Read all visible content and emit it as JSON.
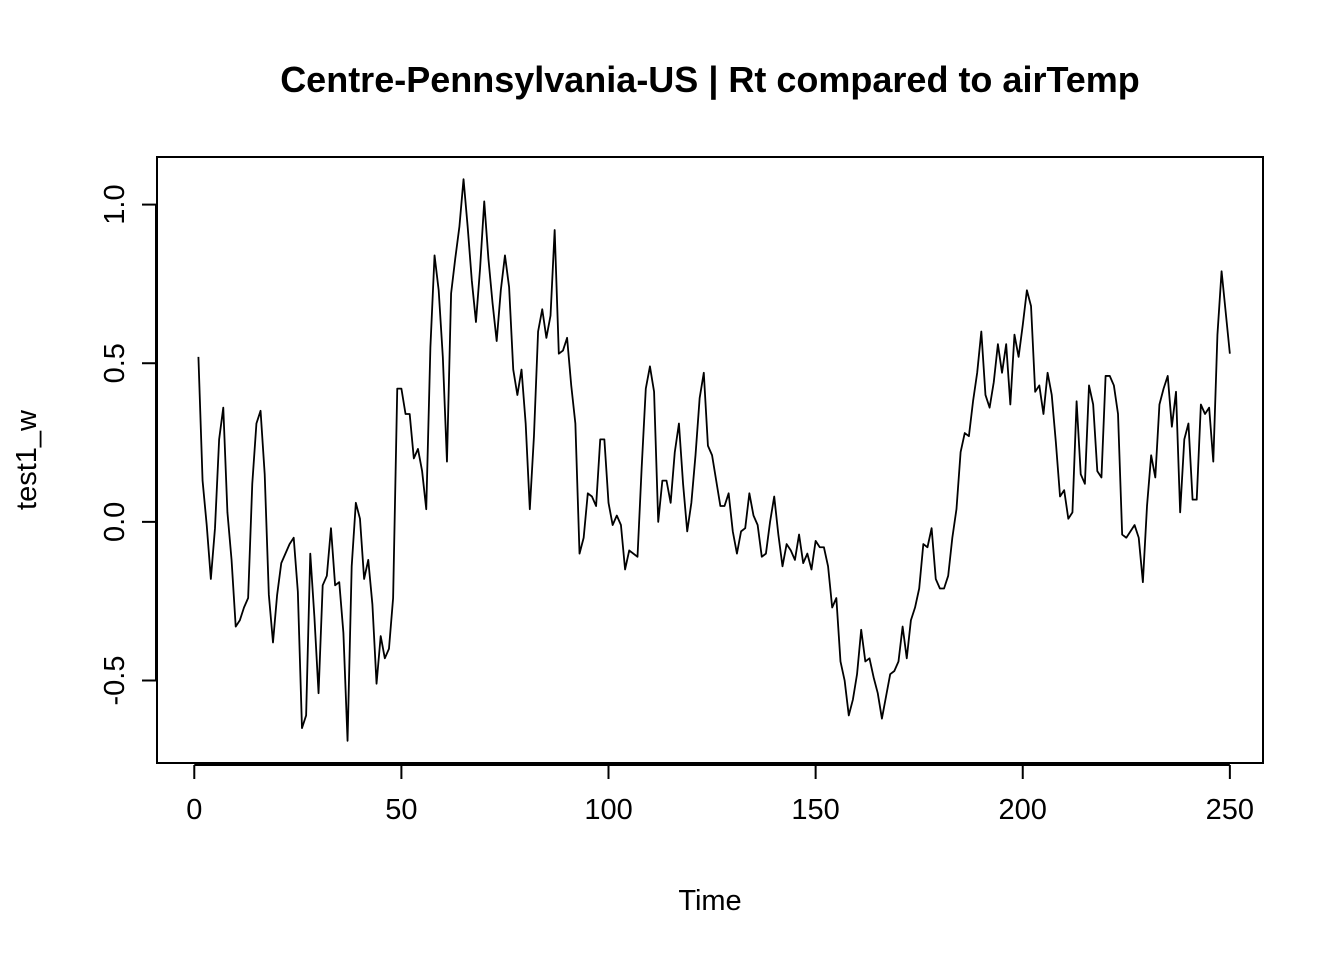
{
  "chart_data": {
    "type": "line",
    "title": "Centre-Pennsylvania-US | Rt compared to airTemp",
    "xlabel": "Time",
    "ylabel": "test1_w",
    "xlim": [
      -9,
      258
    ],
    "ylim": [
      -0.76,
      1.15
    ],
    "xticks": [
      0,
      50,
      100,
      150,
      200,
      250
    ],
    "xtick_labels": [
      "0",
      "50",
      "100",
      "150",
      "200",
      "250"
    ],
    "yticks": [
      -0.5,
      0.0,
      0.5,
      1.0
    ],
    "ytick_labels": [
      "-0.5",
      "0.0",
      "0.5",
      "1.0"
    ],
    "grid": false,
    "legend": "none",
    "line_color": "#000000",
    "x_start": 1,
    "x_step": 1,
    "values": [
      0.52,
      0.13,
      -0.01,
      -0.18,
      -0.02,
      0.26,
      0.36,
      0.03,
      -0.12,
      -0.33,
      -0.31,
      -0.27,
      -0.24,
      0.12,
      0.31,
      0.35,
      0.15,
      -0.23,
      -0.38,
      -0.23,
      -0.13,
      -0.1,
      -0.07,
      -0.05,
      -0.22,
      -0.65,
      -0.61,
      -0.1,
      -0.3,
      -0.54,
      -0.2,
      -0.17,
      -0.02,
      -0.2,
      -0.19,
      -0.35,
      -0.69,
      -0.14,
      0.06,
      0.01,
      -0.18,
      -0.12,
      -0.26,
      -0.51,
      -0.36,
      -0.43,
      -0.4,
      -0.24,
      0.42,
      0.42,
      0.34,
      0.34,
      0.2,
      0.23,
      0.16,
      0.04,
      0.55,
      0.84,
      0.73,
      0.52,
      0.19,
      0.72,
      0.83,
      0.93,
      1.08,
      0.93,
      0.76,
      0.63,
      0.8,
      1.01,
      0.83,
      0.69,
      0.57,
      0.73,
      0.84,
      0.74,
      0.48,
      0.4,
      0.48,
      0.31,
      0.04,
      0.27,
      0.6,
      0.67,
      0.58,
      0.65,
      0.92,
      0.53,
      0.54,
      0.58,
      0.43,
      0.31,
      -0.1,
      -0.05,
      0.09,
      0.08,
      0.05,
      0.26,
      0.26,
      0.06,
      -0.01,
      0.02,
      -0.01,
      -0.15,
      -0.09,
      -0.1,
      -0.11,
      0.17,
      0.42,
      0.49,
      0.41,
      0.0,
      0.13,
      0.13,
      0.06,
      0.22,
      0.31,
      0.12,
      -0.03,
      0.06,
      0.21,
      0.39,
      0.47,
      0.24,
      0.21,
      0.13,
      0.05,
      0.05,
      0.09,
      -0.03,
      -0.1,
      -0.03,
      -0.02,
      0.09,
      0.02,
      -0.01,
      -0.11,
      -0.1,
      0.0,
      0.08,
      -0.04,
      -0.14,
      -0.07,
      -0.09,
      -0.12,
      -0.04,
      -0.13,
      -0.1,
      -0.15,
      -0.06,
      -0.08,
      -0.08,
      -0.14,
      -0.27,
      -0.24,
      -0.44,
      -0.5,
      -0.61,
      -0.56,
      -0.48,
      -0.34,
      -0.44,
      -0.43,
      -0.49,
      -0.54,
      -0.62,
      -0.55,
      -0.48,
      -0.47,
      -0.44,
      -0.33,
      -0.43,
      -0.31,
      -0.27,
      -0.21,
      -0.07,
      -0.08,
      -0.02,
      -0.18,
      -0.21,
      -0.21,
      -0.17,
      -0.05,
      0.04,
      0.22,
      0.28,
      0.27,
      0.38,
      0.47,
      0.6,
      0.4,
      0.36,
      0.44,
      0.56,
      0.47,
      0.56,
      0.37,
      0.59,
      0.52,
      0.62,
      0.73,
      0.68,
      0.41,
      0.43,
      0.34,
      0.47,
      0.4,
      0.25,
      0.08,
      0.1,
      0.01,
      0.03,
      0.38,
      0.15,
      0.12,
      0.43,
      0.37,
      0.16,
      0.14,
      0.46,
      0.46,
      0.43,
      0.34,
      -0.04,
      -0.05,
      -0.03,
      -0.01,
      -0.05,
      -0.19,
      0.05,
      0.21,
      0.14,
      0.37,
      0.42,
      0.46,
      0.3,
      0.41,
      0.03,
      0.26,
      0.31,
      0.07,
      0.07,
      0.37,
      0.34,
      0.36,
      0.19,
      0.59,
      0.79,
      0.66,
      0.53
    ]
  }
}
